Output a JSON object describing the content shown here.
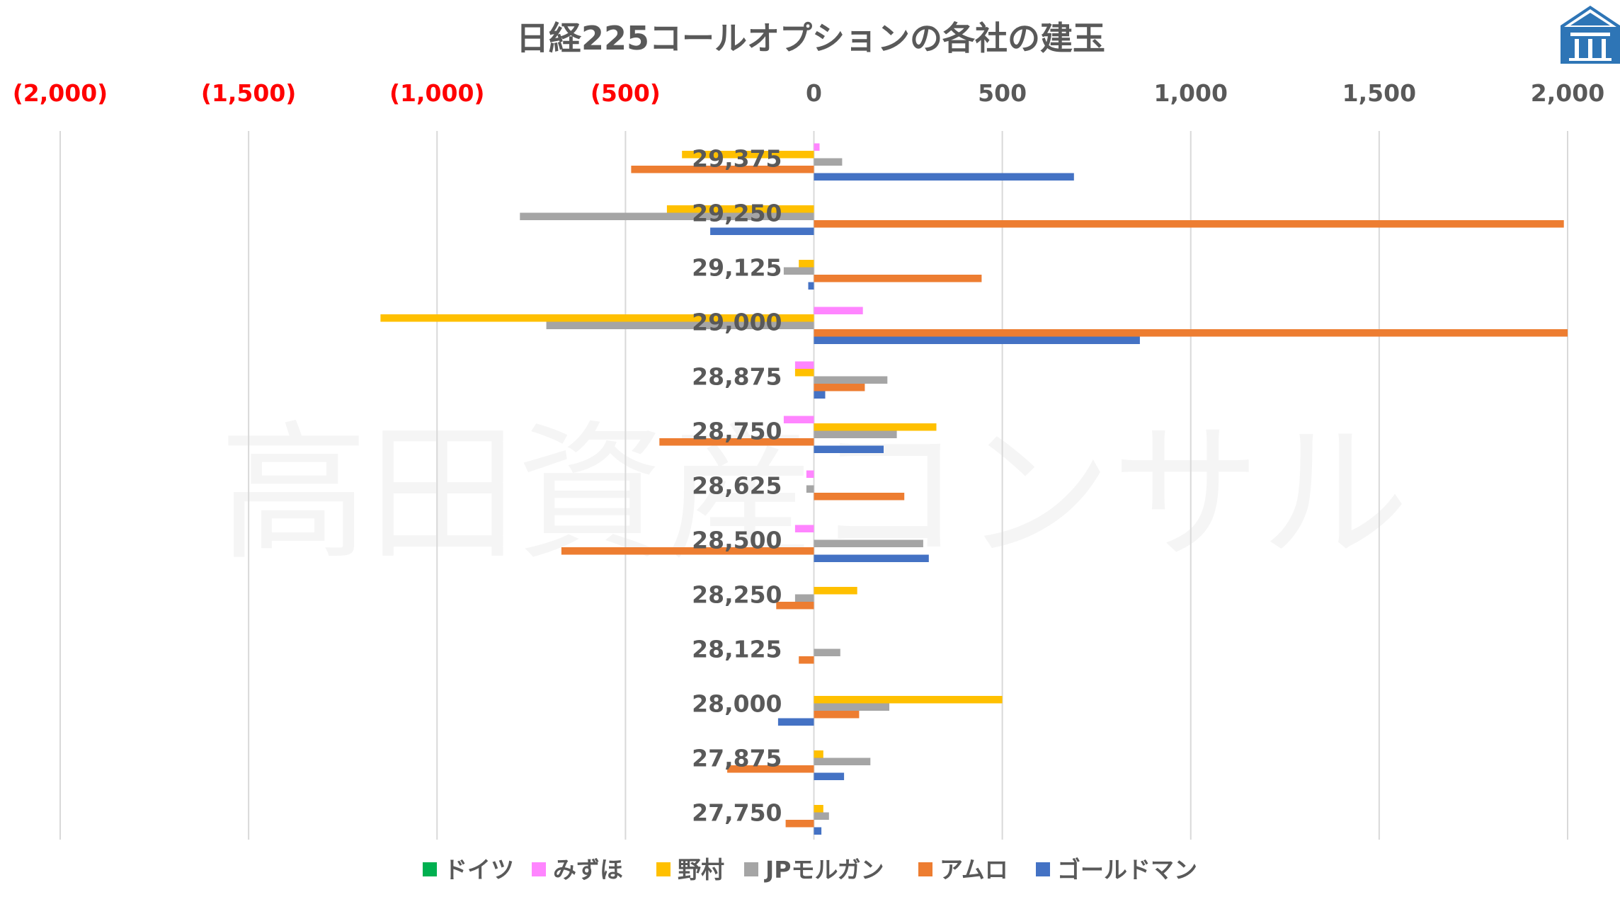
{
  "watermark_text": "高田資産コンサル",
  "chart_data": {
    "type": "bar",
    "orientation": "horizontal",
    "title": "日経225コールオプションの各社の建玉",
    "xlim": [
      -2000,
      2000
    ],
    "x_ticks": [
      -2000,
      -1500,
      -1000,
      -500,
      0,
      500,
      1000,
      1500,
      2000
    ],
    "x_tick_labels": [
      "(2,000)",
      "(1,500)",
      "(1,000)",
      "(500)",
      "0",
      "500",
      "1,000",
      "1,500",
      "2,000"
    ],
    "negative_tick_color": "#ff0000",
    "grid": true,
    "legend_position": "bottom",
    "categories": [
      "29,375",
      "29,250",
      "29,125",
      "29,000",
      "28,875",
      "28,750",
      "28,625",
      "28,500",
      "28,250",
      "28,125",
      "28,000",
      "27,875",
      "27,750"
    ],
    "series": [
      {
        "name": "ドイツ",
        "color": "#00b050",
        "values": [
          0,
          0,
          0,
          0,
          0,
          0,
          0,
          0,
          0,
          0,
          0,
          0,
          0
        ]
      },
      {
        "name": "みずほ",
        "color": "#ff85ff",
        "values": [
          15,
          0,
          0,
          130,
          -50,
          -80,
          -20,
          -50,
          0,
          0,
          0,
          0,
          0
        ]
      },
      {
        "name": "野村",
        "color": "#ffc000",
        "values": [
          -350,
          -390,
          -40,
          -1150,
          -50,
          325,
          0,
          0,
          115,
          0,
          500,
          25,
          25
        ]
      },
      {
        "name": "JPモルガン",
        "color": "#a5a5a5",
        "values": [
          75,
          -780,
          -80,
          -710,
          195,
          220,
          -20,
          290,
          -50,
          70,
          200,
          150,
          40
        ]
      },
      {
        "name": "アムロ",
        "color": "#ed7d31",
        "values": [
          -485,
          1990,
          445,
          2000,
          135,
          -410,
          240,
          -670,
          -100,
          -40,
          120,
          -230,
          -75
        ]
      },
      {
        "name": "ゴールドマン",
        "color": "#4472c4",
        "values": [
          690,
          -275,
          -15,
          865,
          30,
          185,
          0,
          305,
          0,
          0,
          -95,
          80,
          20
        ]
      }
    ]
  }
}
